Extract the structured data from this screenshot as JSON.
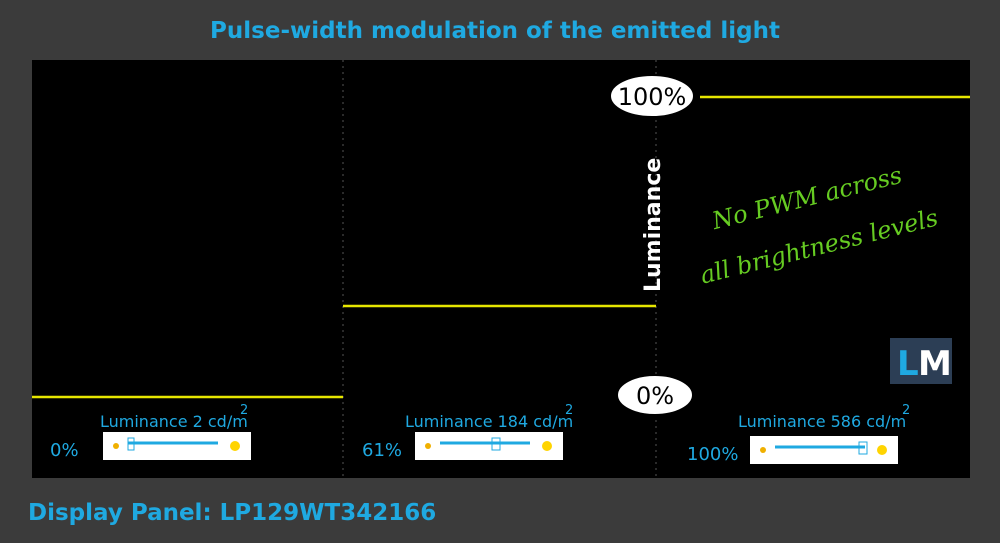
{
  "header": {
    "title": "Pulse-width modulation of the emitted light"
  },
  "plot": {
    "top_label": "100%",
    "bottom_label": "0%",
    "axis_label": "Luminance",
    "note": [
      "No PWM across",
      "all brightness levels"
    ],
    "logo": [
      "L",
      "M"
    ]
  },
  "panels": [
    {
      "luminance": "Luminance 2 cd/m",
      "sup": "2",
      "brightness": "0%"
    },
    {
      "luminance": "Luminance 184 cd/m",
      "sup": "2",
      "brightness": "61%"
    },
    {
      "luminance": "Luminance 586 cd/m",
      "sup": "2",
      "brightness": "100%"
    }
  ],
  "footer": {
    "panel": "Display Panel: LP129WT342166"
  }
}
